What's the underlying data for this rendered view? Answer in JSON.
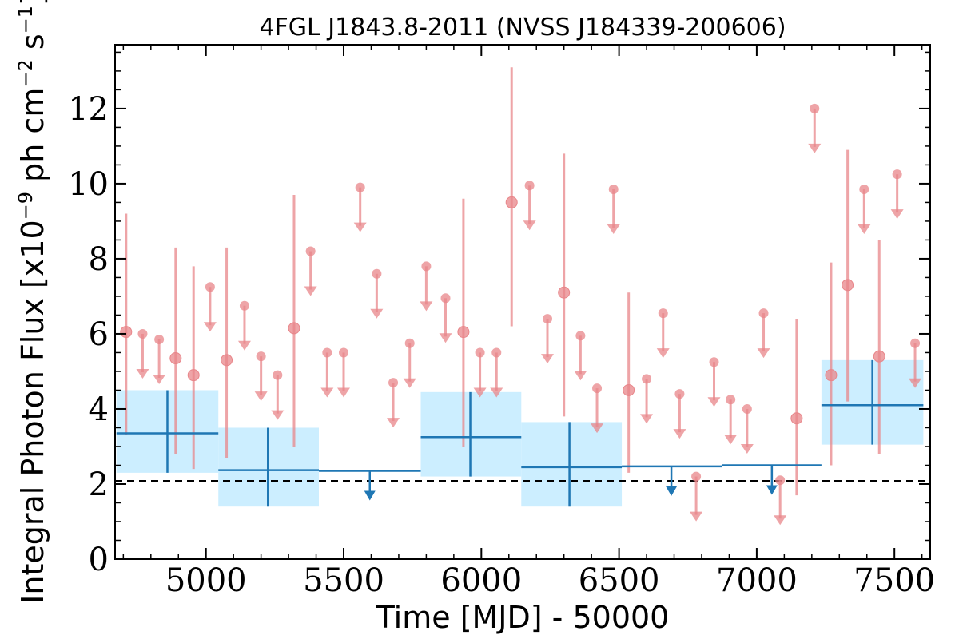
{
  "chart_data": {
    "type": "scatter",
    "title": "4FGL J1843.8-2011 (NVSS J184339-200606)",
    "xlabel": "Time [MJD] - 50000",
    "ylabel": {
      "prefix": "Integral Photon Flux [x10",
      "exp1": "−9",
      "middle": " ph cm",
      "exp2": "−2",
      "middle2": " s",
      "exp3": "−1",
      "suffix": "]"
    },
    "xlim": [
      4670,
      7630
    ],
    "ylim": [
      0,
      13.7
    ],
    "x_ticks": [
      5000,
      5500,
      6000,
      6500,
      7000,
      7500
    ],
    "y_ticks": [
      0,
      2,
      4,
      6,
      8,
      10,
      12
    ],
    "grid": false,
    "reference_line": {
      "y": 2.08,
      "style": "dashed",
      "color": "#000000"
    },
    "colors": {
      "short_bin": "#e8868a",
      "long_bin": "#1f77b4",
      "band_fill": "#cceeff"
    },
    "series": [
      {
        "points": [
          {
            "x": 4710,
            "y": 6.05,
            "err": [
              3.3,
              9.2
            ]
          },
          {
            "x": 4890,
            "y": 5.35,
            "err": [
              2.8,
              8.3
            ]
          },
          {
            "x": 4955,
            "y": 4.9,
            "err": [
              2.4,
              7.8
            ]
          },
          {
            "x": 5075,
            "y": 5.3,
            "err": [
              2.7,
              8.3
            ]
          },
          {
            "x": 5320,
            "y": 6.15,
            "err": [
              3.0,
              9.7
            ]
          },
          {
            "x": 5935,
            "y": 6.05,
            "err": [
              3.0,
              9.6
            ]
          },
          {
            "x": 6110,
            "y": 9.5,
            "err": [
              6.2,
              13.1
            ]
          },
          {
            "x": 6300,
            "y": 7.1,
            "err": [
              3.8,
              10.8
            ]
          },
          {
            "x": 6535,
            "y": 4.5,
            "err": [
              2.3,
              7.1
            ]
          },
          {
            "x": 7145,
            "y": 3.75,
            "err": [
              1.7,
              6.4
            ]
          },
          {
            "x": 7270,
            "y": 4.9,
            "err": [
              2.5,
              7.9
            ]
          },
          {
            "x": 7330,
            "y": 7.3,
            "err": [
              4.2,
              10.9
            ]
          },
          {
            "x": 7445,
            "y": 5.4,
            "err": [
              2.8,
              8.5
            ]
          }
        ],
        "upper_limits": [
          {
            "x": 4770,
            "y": 6.0
          },
          {
            "x": 4830,
            "y": 5.85
          },
          {
            "x": 5015,
            "y": 7.25
          },
          {
            "x": 5140,
            "y": 6.75
          },
          {
            "x": 5200,
            "y": 5.4
          },
          {
            "x": 5260,
            "y": 4.9
          },
          {
            "x": 5380,
            "y": 8.2
          },
          {
            "x": 5440,
            "y": 5.5
          },
          {
            "x": 5500,
            "y": 5.5
          },
          {
            "x": 5560,
            "y": 9.9
          },
          {
            "x": 5620,
            "y": 7.6
          },
          {
            "x": 5680,
            "y": 4.7
          },
          {
            "x": 5740,
            "y": 5.75
          },
          {
            "x": 5800,
            "y": 7.8
          },
          {
            "x": 5870,
            "y": 6.95
          },
          {
            "x": 5995,
            "y": 5.5
          },
          {
            "x": 6055,
            "y": 5.5
          },
          {
            "x": 6175,
            "y": 9.95
          },
          {
            "x": 6240,
            "y": 6.4
          },
          {
            "x": 6360,
            "y": 5.95
          },
          {
            "x": 6420,
            "y": 4.55
          },
          {
            "x": 6480,
            "y": 9.85
          },
          {
            "x": 6600,
            "y": 4.8
          },
          {
            "x": 6660,
            "y": 6.55
          },
          {
            "x": 6720,
            "y": 4.4
          },
          {
            "x": 6780,
            "y": 2.2
          },
          {
            "x": 6845,
            "y": 5.25
          },
          {
            "x": 6905,
            "y": 4.25
          },
          {
            "x": 6965,
            "y": 4.0
          },
          {
            "x": 7025,
            "y": 6.55
          },
          {
            "x": 7085,
            "y": 2.1
          },
          {
            "x": 7210,
            "y": 12.0
          },
          {
            "x": 7390,
            "y": 9.85
          },
          {
            "x": 7510,
            "y": 10.25
          },
          {
            "x": 7575,
            "y": 5.75
          }
        ]
      },
      {
        "points": [
          {
            "x": 4860,
            "x0": 4675,
            "x1": 5045,
            "y": 3.35,
            "err": [
              2.3,
              4.5
            ]
          },
          {
            "x": 5225,
            "x0": 5045,
            "x1": 5410,
            "y": 2.37,
            "err": [
              1.4,
              3.5
            ]
          },
          {
            "x": 5960,
            "x0": 5780,
            "x1": 6145,
            "y": 3.25,
            "err": [
              2.2,
              4.45
            ]
          },
          {
            "x": 6320,
            "x0": 6145,
            "x1": 6510,
            "y": 2.45,
            "err": [
              1.4,
              3.65
            ]
          },
          {
            "x": 7420,
            "x0": 7235,
            "x1": 7605,
            "y": 4.1,
            "err": [
              3.05,
              5.3
            ]
          }
        ],
        "upper_limits": [
          {
            "x": 5595,
            "x0": 5410,
            "x1": 5780,
            "y": 2.35
          },
          {
            "x": 6690,
            "x0": 6510,
            "x1": 6875,
            "y": 2.47
          },
          {
            "x": 7055,
            "x0": 6875,
            "x1": 7235,
            "y": 2.5
          }
        ]
      }
    ]
  }
}
